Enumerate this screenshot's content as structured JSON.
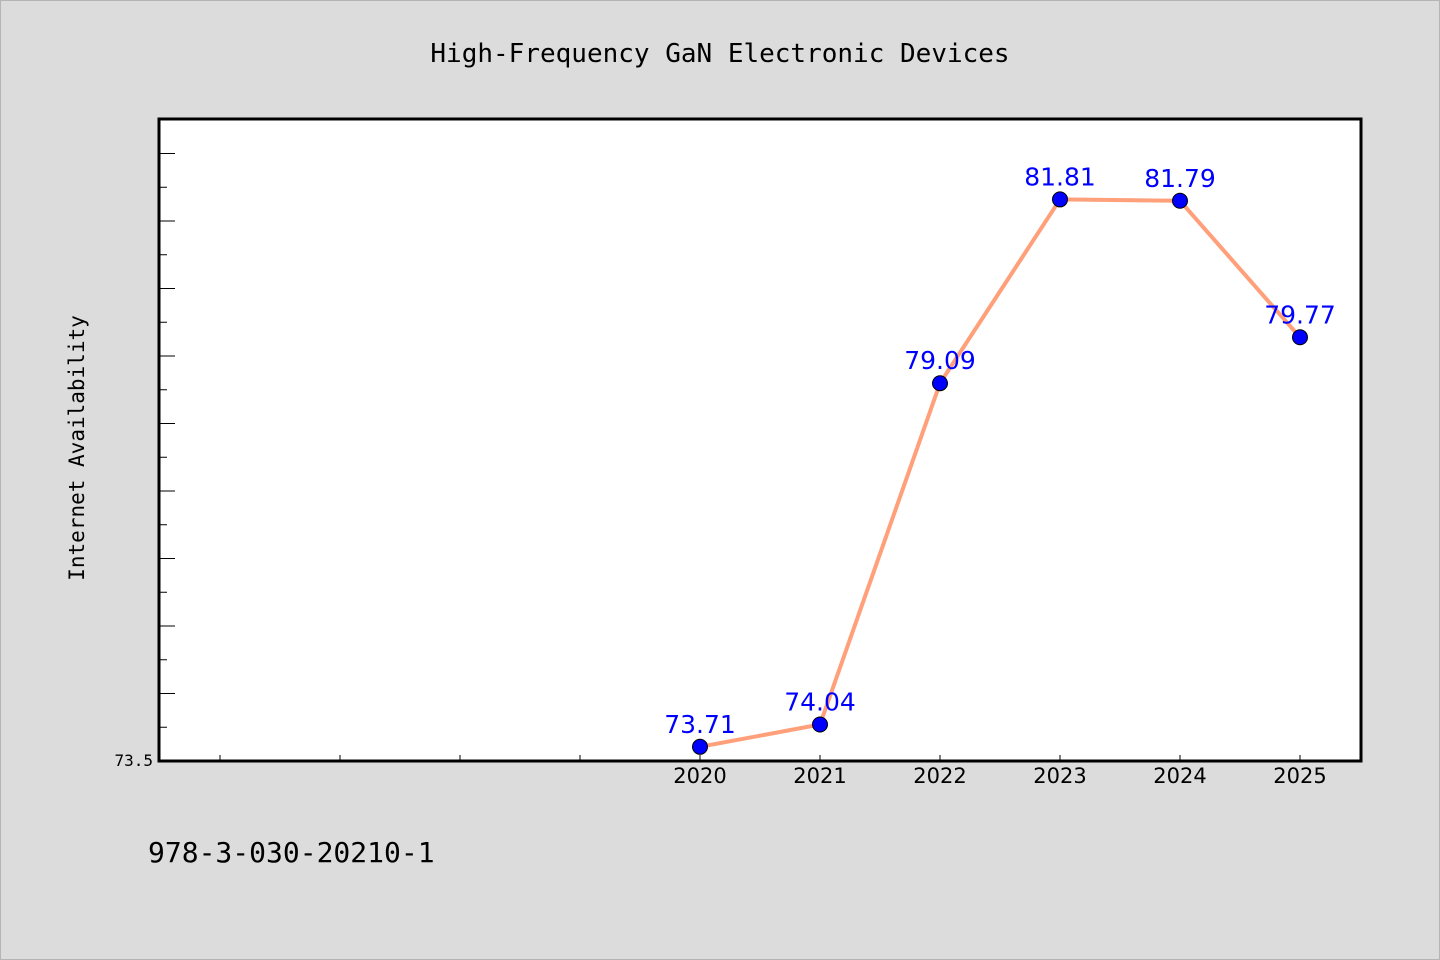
{
  "chart_data": {
    "type": "line",
    "title": "High-Frequency GaN Electronic Devices",
    "xlabel": "",
    "ylabel": "Internet Availability",
    "categories": [
      "2020",
      "2021",
      "2022",
      "2023",
      "2024",
      "2025"
    ],
    "series": [
      {
        "values": [
          73.71,
          74.04,
          79.09,
          81.81,
          81.79,
          79.77
        ],
        "labels": [
          "73.71",
          "74.04",
          "79.09",
          "81.81",
          "81.79",
          "79.77"
        ]
      }
    ],
    "ylim": [
      73.5,
      83
    ],
    "yticklabels": [
      "73.5"
    ],
    "grid": false,
    "legend": "none"
  },
  "colors": {
    "background": "#dcdcdc",
    "plot_area": "#ffffff",
    "line": "#ffa07a",
    "marker": "#0000ff",
    "data_label": "#0000ff"
  },
  "footer": {
    "text": "978-3-030-20210-1"
  }
}
